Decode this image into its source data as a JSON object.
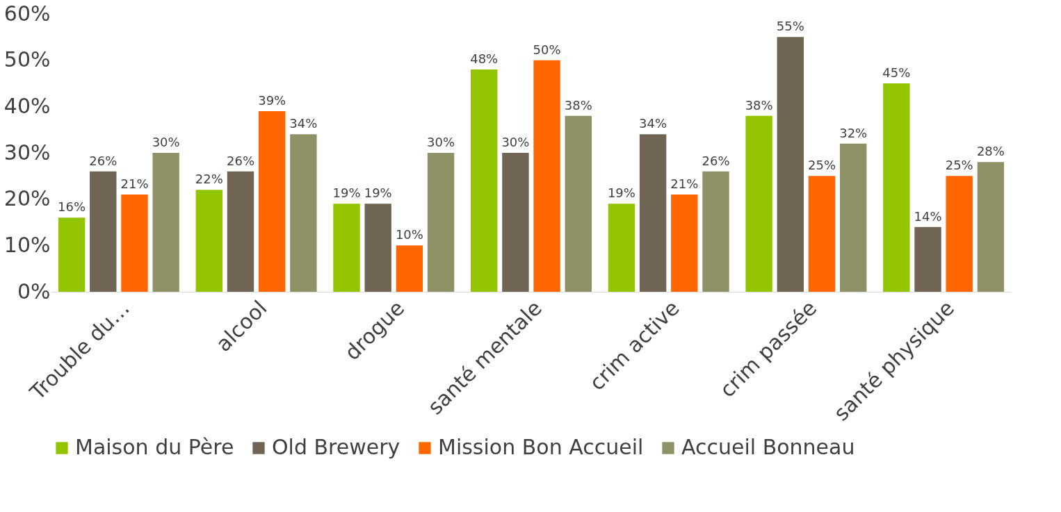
{
  "chart_data": {
    "type": "bar",
    "categories": [
      "Trouble du…",
      "alcool",
      "drogue",
      "santé mentale",
      "crim active",
      "crim passée",
      "santé physique"
    ],
    "series": [
      {
        "name": "Maison du Père",
        "color": "#92c500",
        "values": [
          16,
          22,
          19,
          48,
          19,
          38,
          45
        ],
        "value_labels": [
          "16%",
          "22%",
          "19%",
          "48%",
          "19%",
          "38%",
          "45%"
        ]
      },
      {
        "name": "Old Brewery",
        "color": "#706454",
        "values": [
          26,
          26,
          19,
          30,
          34,
          55,
          14
        ],
        "value_labels": [
          "26%",
          "26%",
          "19%",
          "30%",
          "34%",
          "55%",
          "14%"
        ]
      },
      {
        "name": "Mission Bon Accueil",
        "color": "#ff6600",
        "values": [
          21,
          39,
          10,
          50,
          21,
          25,
          25
        ],
        "value_labels": [
          "21%",
          "39%",
          "10%",
          "50%",
          "21%",
          "25%",
          "25%"
        ]
      },
      {
        "name": "Accueil Bonneau",
        "color": "#8f9267",
        "values": [
          30,
          34,
          30,
          38,
          26,
          32,
          28
        ],
        "value_labels": [
          "30%",
          "34%",
          "30%",
          "38%",
          "26%",
          "32%",
          "28%"
        ]
      }
    ],
    "ylim": [
      0,
      60
    ],
    "yticks": [
      {
        "value": 0,
        "label": "0%"
      },
      {
        "value": 10,
        "label": "10%"
      },
      {
        "value": 20,
        "label": "20%"
      },
      {
        "value": 30,
        "label": "30%"
      },
      {
        "value": 40,
        "label": "40%"
      },
      {
        "value": 50,
        "label": "50%"
      },
      {
        "value": 60,
        "label": "60%"
      }
    ],
    "grid": false,
    "legend": "bottom"
  }
}
